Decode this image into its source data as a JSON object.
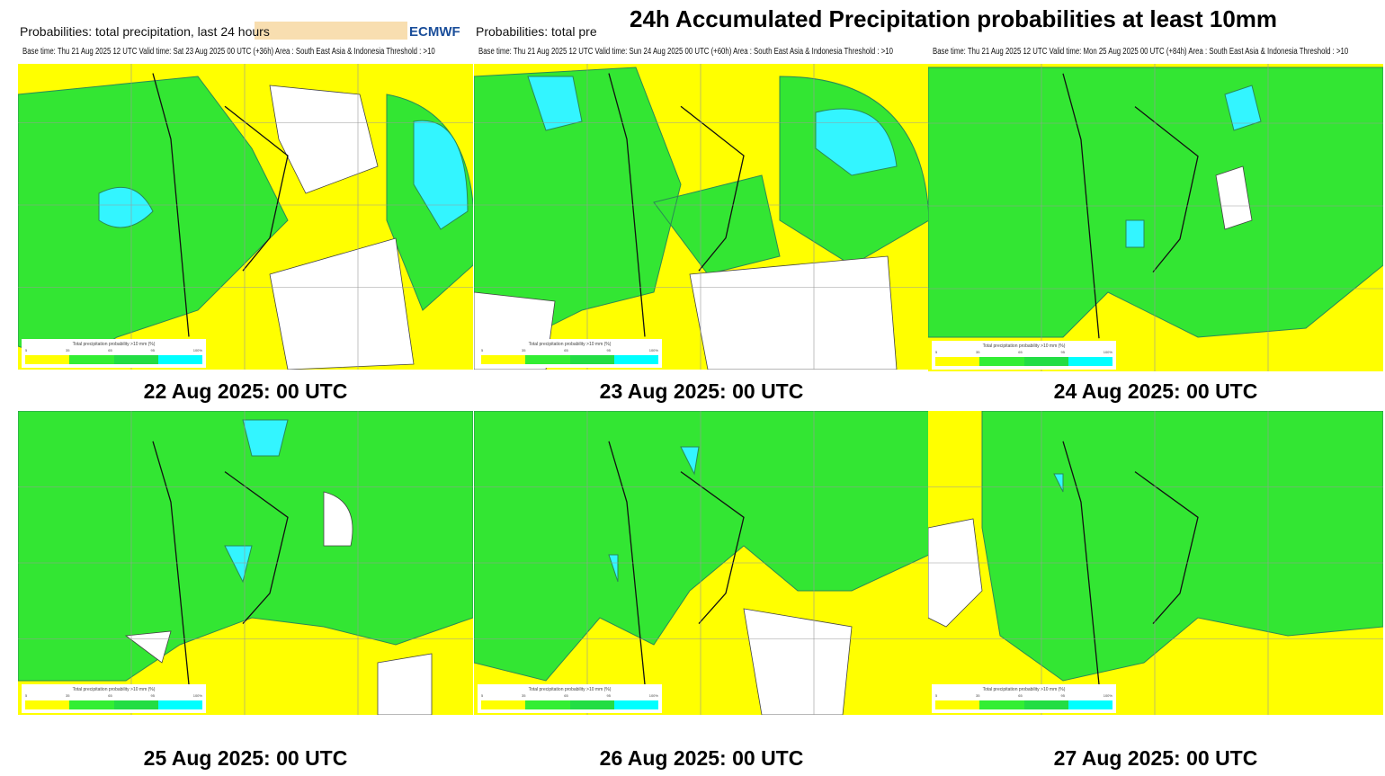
{
  "title": "24h Accumulated Precipitation probabilities at least 10mm",
  "product_label": "Probabilities:  total precipitation, last 24 hours",
  "product_label_truncated": "Probabilities:  total prec",
  "logo": "ECMWF",
  "legend": {
    "title": "Total precipitation probability >10 mm (%)",
    "ticks": [
      "5",
      "35",
      "65",
      "95",
      "100%"
    ],
    "colors": [
      "#ffff00",
      "#33ee33",
      "#22dd44",
      "#00ffff"
    ]
  },
  "panels": [
    {
      "header": "Base time: Thu 21 Aug 2025 12 UTC Valid time: Sat 23 Aug 2025 00 UTC (+36h) Area : South East Asia & Indonesia Threshold : >10",
      "caption": "22 Aug 2025: 00 UTC"
    },
    {
      "header": "Base time: Thu 21 Aug 2025 12 UTC Valid time: Sun 24 Aug 2025 00 UTC (+60h) Area : South East Asia & Indonesia Threshold : >10",
      "caption": "23 Aug 2025: 00 UTC"
    },
    {
      "header": "Base time: Thu 21 Aug 2025 12 UTC Valid time: Mon 25 Aug 2025 00 UTC (+84h) Area : South East Asia & Indonesia Threshold : >10",
      "caption": "24 Aug 2025: 00 UTC"
    },
    {
      "header": "",
      "caption": "25 Aug 2025: 00 UTC"
    },
    {
      "header": "",
      "caption": "26 Aug 2025: 00 UTC"
    },
    {
      "header": "",
      "caption": "27 Aug 2025: 00 UTC"
    }
  ]
}
